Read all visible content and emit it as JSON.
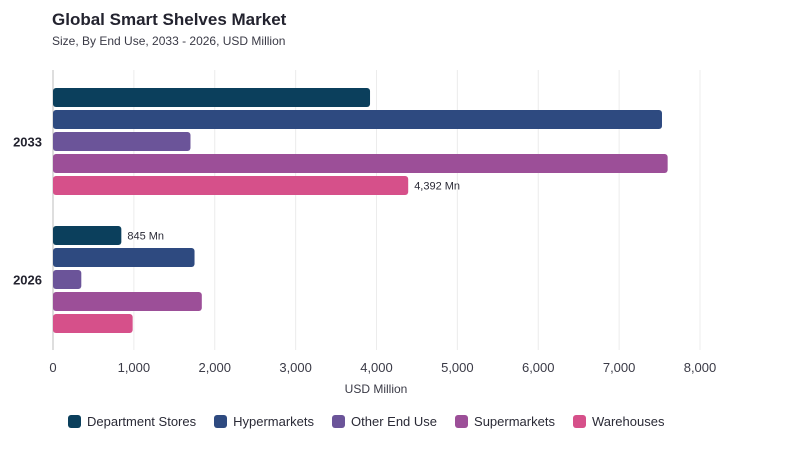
{
  "header": {
    "title": "Global Smart Shelves Market",
    "subtitle": "Size, By End Use, 2033 - 2026, USD Million"
  },
  "chart_data": {
    "type": "bar",
    "orientation": "horizontal",
    "categories": [
      "2033",
      "2026"
    ],
    "series": [
      {
        "name": "Department Stores",
        "color": "#0b3f5c",
        "values": [
          3920,
          845
        ]
      },
      {
        "name": "Hypermarkets",
        "color": "#2e4a80",
        "values": [
          7530,
          1750
        ]
      },
      {
        "name": "Other End Use",
        "color": "#6b5499",
        "values": [
          1700,
          350
        ]
      },
      {
        "name": "Supermarkets",
        "color": "#9c4f98",
        "values": [
          7600,
          1840
        ]
      },
      {
        "name": "Warehouses",
        "color": "#d6508a",
        "values": [
          4392,
          985
        ]
      }
    ],
    "data_labels": [
      {
        "series": "Warehouses",
        "category": "2033",
        "text": "4,392 Mn"
      },
      {
        "series": "Department Stores",
        "category": "2026",
        "text": "845 Mn"
      }
    ],
    "xlabel": "USD Million",
    "ylabel": "",
    "xlim": [
      0,
      8000
    ],
    "xticks": [
      0,
      1000,
      2000,
      3000,
      4000,
      5000,
      6000,
      7000,
      8000
    ],
    "xtick_labels": [
      "0",
      "1,000",
      "2,000",
      "3,000",
      "4,000",
      "5,000",
      "6,000",
      "7,000",
      "8,000"
    ],
    "grid": "vertical",
    "legend": "bottom"
  }
}
